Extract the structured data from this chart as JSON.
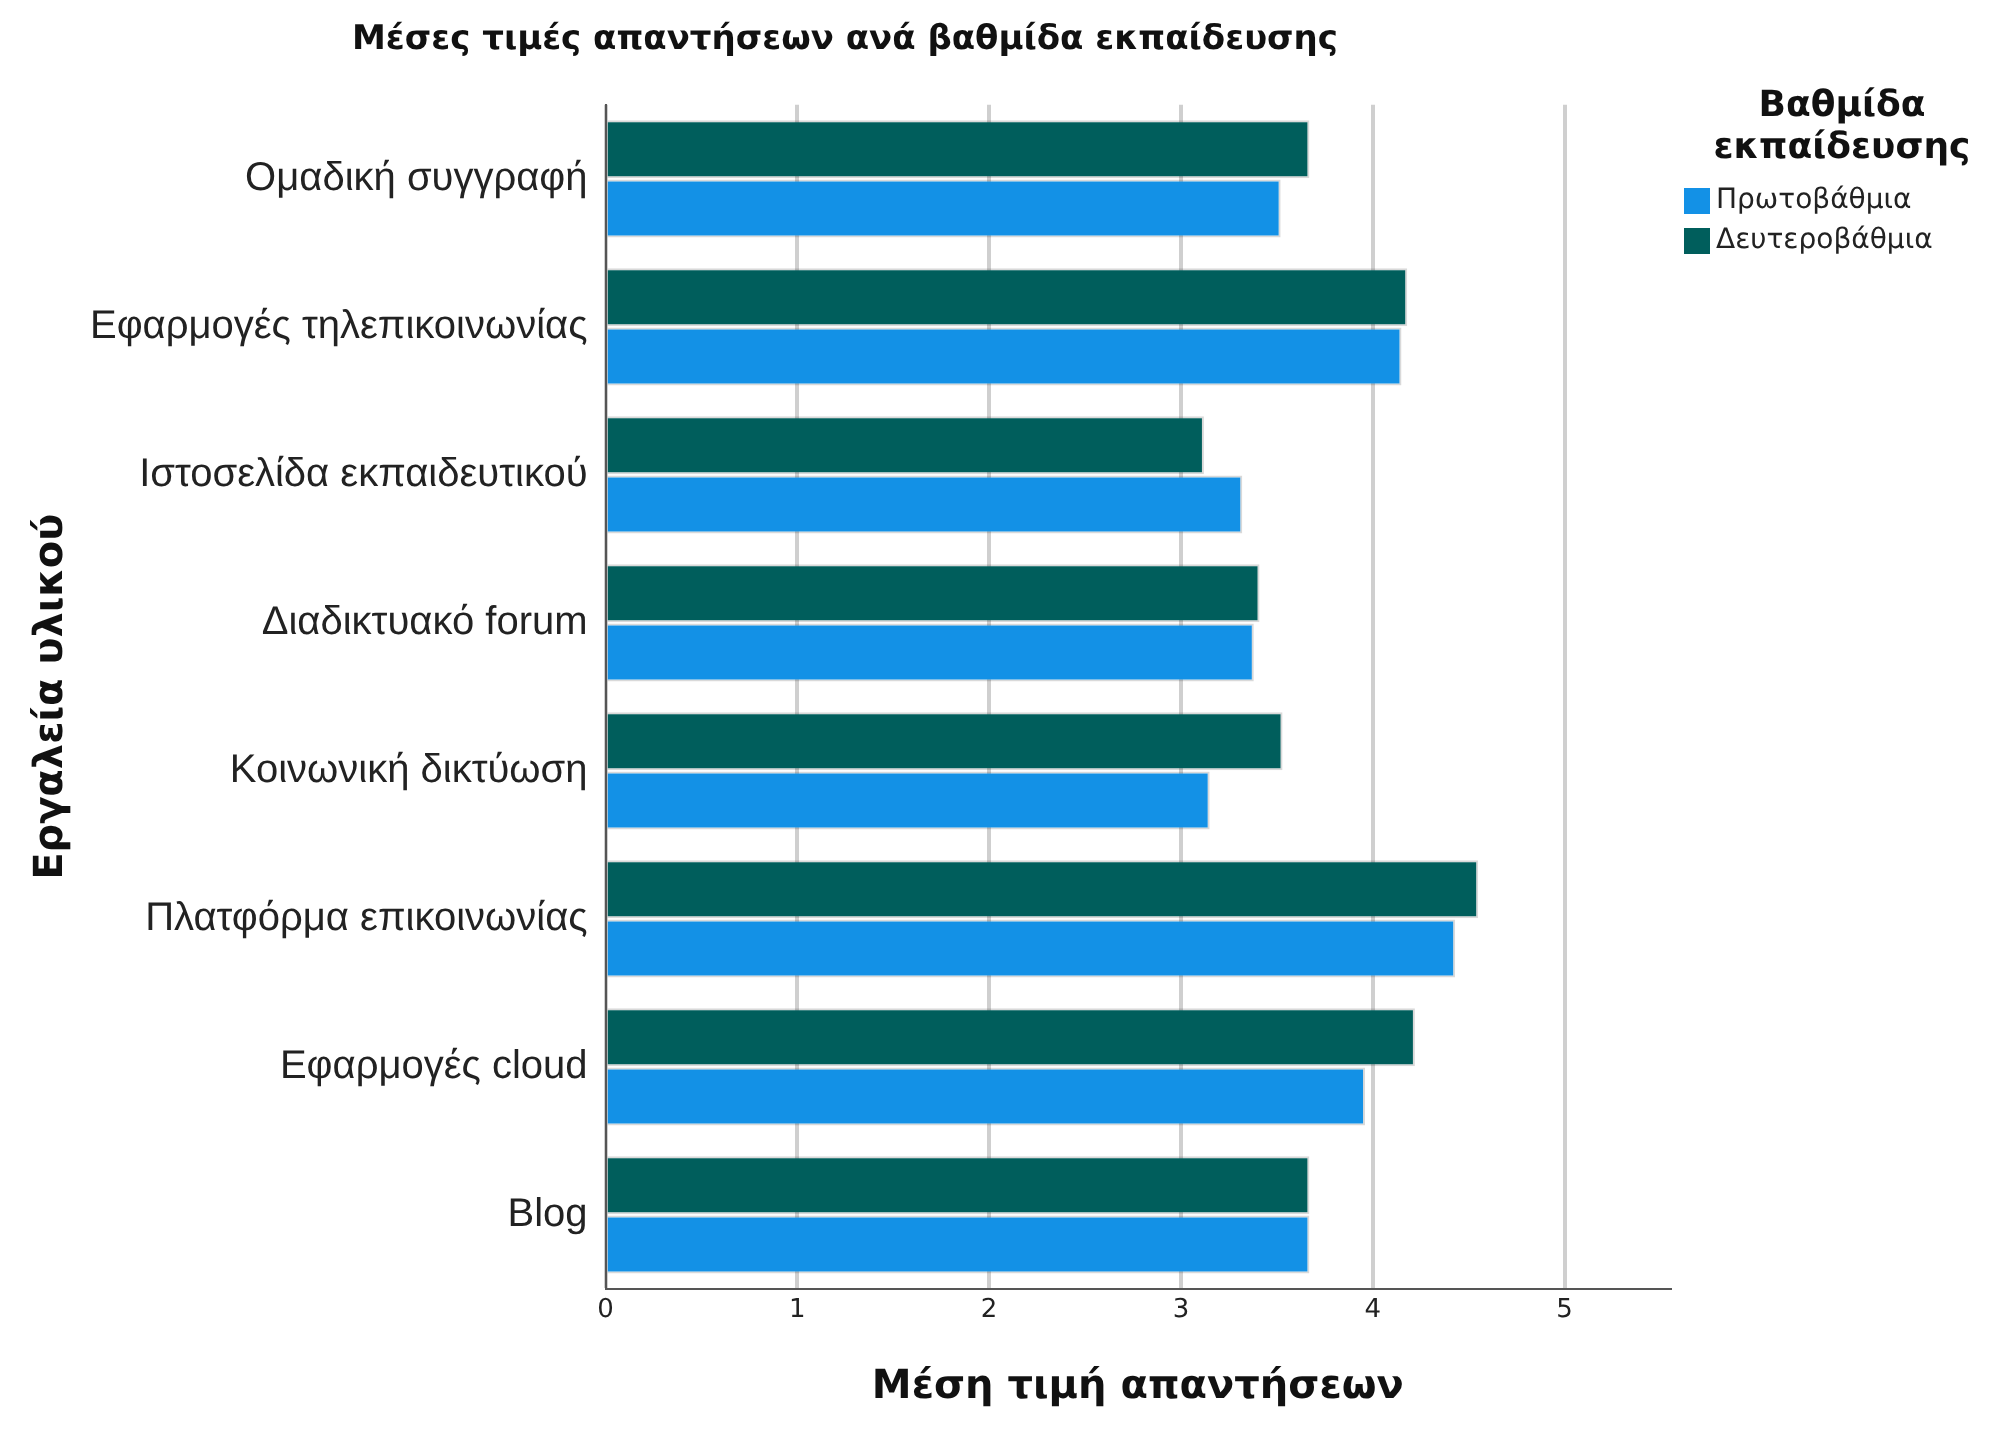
{
  "chart_data": {
    "type": "bar",
    "orientation": "horizontal",
    "title": "Μέσες τιμές απαντήσεων ανά βαθμίδα εκπαίδευσης",
    "xlabel": "Μέση τιμή απαντήσεων",
    "ylabel": "Εργαλεία υλικού",
    "legend_title": "Βαθμίδα εκπαίδευσης",
    "legend": "top right",
    "grid": "x",
    "categories": [
      "Ομαδική συγγραφή",
      "Εφαρμογές τηλεπικοινωνίας",
      "Ιστοσελίδα εκπαιδευτικού",
      "Διαδικτυακό forum",
      "Κοινωνική δικτύωση",
      "Πλατφόρμα επικοινωνίας",
      "Εφαρμογές cloud",
      "Blog"
    ],
    "series": [
      {
        "name": "Πρωτοβάθμια",
        "color": "#1391e6",
        "values": [
          3.52,
          4.15,
          3.32,
          3.38,
          3.15,
          4.43,
          3.96,
          3.67
        ]
      },
      {
        "name": "Δευτεροβάθμια",
        "color": "#005e5c",
        "values": [
          3.67,
          4.18,
          3.12,
          3.41,
          3.53,
          4.55,
          4.22,
          3.67
        ]
      }
    ],
    "xlim": [
      0,
      5.55
    ],
    "xticks": [
      0,
      1,
      2,
      3,
      4,
      5
    ]
  }
}
